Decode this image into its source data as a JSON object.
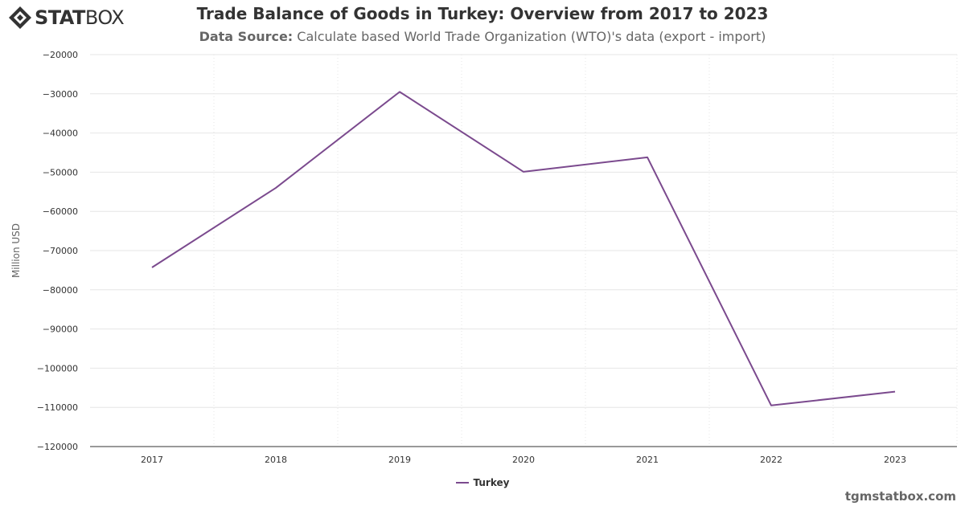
{
  "logo": {
    "part1": "STAT",
    "part2": "BOX"
  },
  "header": {
    "title": "Trade Balance of Goods in Turkey: Overview from 2017 to 2023",
    "subtitle_label": "Data Source:",
    "subtitle_text": "Calculate based World Trade Organization (WTO)'s data (export - import)"
  },
  "credit": "tgmstatbox.com",
  "colors": {
    "series": "#7b4a8e",
    "grid": "#e6e6e6",
    "axis_text": "#333333",
    "axis_line": "#333333"
  },
  "chart_data": {
    "type": "line",
    "title": "Trade Balance of Goods in Turkey: Overview from 2017 to 2023",
    "xlabel": "",
    "ylabel": "Million USD",
    "categories": [
      "2017",
      "2018",
      "2019",
      "2020",
      "2021",
      "2022",
      "2023"
    ],
    "series": [
      {
        "name": "Turkey",
        "color": "#7b4a8e",
        "values": [
          -74300,
          -54000,
          -29500,
          -49900,
          -46200,
          -109500,
          -106000
        ]
      }
    ],
    "ylim": [
      -120000,
      -20000
    ],
    "yticks": [
      -20000,
      -30000,
      -40000,
      -50000,
      -60000,
      -70000,
      -80000,
      -90000,
      -100000,
      -110000,
      -120000
    ],
    "grid": true,
    "legend": "bottom-center"
  }
}
